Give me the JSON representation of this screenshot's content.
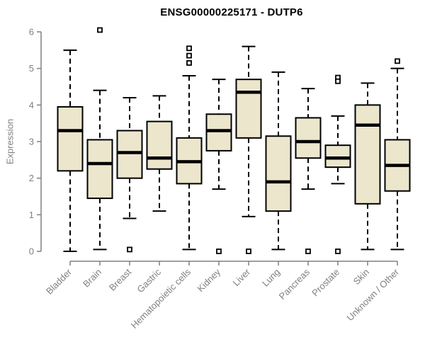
{
  "chart_data": {
    "type": "boxplot",
    "title": "ENSG00000225171 - DUTP6",
    "ylabel": "Expression",
    "xlabel": "",
    "ylim": [
      0,
      6
    ],
    "yticks": [
      0,
      1,
      2,
      3,
      4,
      5,
      6
    ],
    "grid": false,
    "legend": "none",
    "categories": [
      "Bladder",
      "Brain",
      "Breast",
      "Gastric",
      "Hematopoietic cells",
      "Kidney",
      "Liver",
      "Lung",
      "Pancreas",
      "Prostate",
      "Skin",
      "Unknown / Other"
    ],
    "boxes": [
      {
        "category": "Bladder",
        "low": 0.0,
        "q1": 2.2,
        "median": 3.3,
        "q3": 3.95,
        "high": 5.5,
        "outliers": []
      },
      {
        "category": "Brain",
        "low": 0.05,
        "q1": 1.45,
        "median": 2.4,
        "q3": 3.05,
        "high": 4.4,
        "outliers": [
          6.05
        ]
      },
      {
        "category": "Breast",
        "low": 0.9,
        "q1": 2.0,
        "median": 2.7,
        "q3": 3.3,
        "high": 4.2,
        "outliers": [
          0.05
        ]
      },
      {
        "category": "Gastric",
        "low": 1.1,
        "q1": 2.25,
        "median": 2.55,
        "q3": 3.55,
        "high": 4.25,
        "outliers": []
      },
      {
        "category": "Hematopoietic cells",
        "low": 0.05,
        "q1": 1.85,
        "median": 2.45,
        "q3": 3.1,
        "high": 4.8,
        "outliers": [
          5.55,
          5.35,
          5.15
        ]
      },
      {
        "category": "Kidney",
        "low": 1.7,
        "q1": 2.75,
        "median": 3.3,
        "q3": 3.75,
        "high": 4.7,
        "outliers": [
          0.0
        ]
      },
      {
        "category": "Liver",
        "low": 0.95,
        "q1": 3.1,
        "median": 4.35,
        "q3": 4.7,
        "high": 5.6,
        "outliers": [
          0.0
        ]
      },
      {
        "category": "Lung",
        "low": 0.05,
        "q1": 1.1,
        "median": 1.9,
        "q3": 3.15,
        "high": 4.9,
        "outliers": []
      },
      {
        "category": "Pancreas",
        "low": 1.7,
        "q1": 2.55,
        "median": 3.0,
        "q3": 3.65,
        "high": 4.45,
        "outliers": [
          0.0
        ]
      },
      {
        "category": "Prostate",
        "low": 1.85,
        "q1": 2.3,
        "median": 2.55,
        "q3": 2.9,
        "high": 3.7,
        "outliers": [
          4.75,
          4.65,
          0.0
        ]
      },
      {
        "category": "Skin",
        "low": 0.05,
        "q1": 1.3,
        "median": 3.45,
        "q3": 4.0,
        "high": 4.6,
        "outliers": []
      },
      {
        "category": "Unknown / Other",
        "low": 0.05,
        "q1": 1.65,
        "median": 2.35,
        "q3": 3.05,
        "high": 5.0,
        "outliers": [
          5.2
        ]
      }
    ],
    "colors": {
      "box_fill": "#EBE6CC",
      "box_stroke": "#000000",
      "median": "#000000",
      "whisker": "#000000",
      "outlier_stroke": "#000000",
      "outlier_fill": "#FFFFFF",
      "axis": "#808080",
      "tick_label": "#808080",
      "title": "#000000",
      "background": "#FFFFFF"
    }
  }
}
